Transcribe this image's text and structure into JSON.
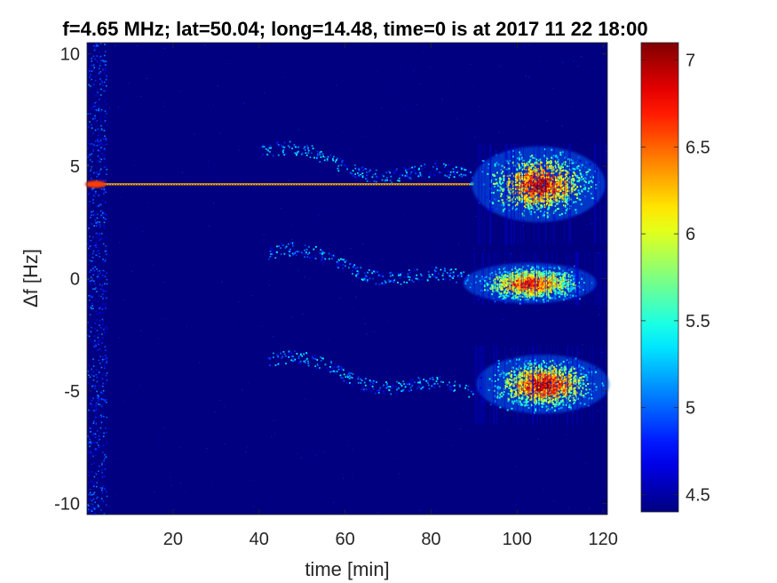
{
  "chart_data": {
    "type": "heatmap",
    "title": "f=4.65 MHz;  lat=50.04; long=14.48, time=0 is at 2017 11 22 18:00",
    "xlabel": "time [min]",
    "ylabel": "Δf [Hz]",
    "xlim": [
      0,
      121
    ],
    "ylim": [
      -10.5,
      10.5
    ],
    "xticks": [
      20,
      40,
      60,
      80,
      100,
      120
    ],
    "yticks": [
      -10,
      -5,
      0,
      5,
      10
    ],
    "colorbar": {
      "colormap": "jet",
      "range": [
        4.4,
        7.1
      ],
      "ticks": [
        4.5,
        5,
        5.5,
        6,
        6.5,
        7
      ]
    },
    "background_value": 4.4,
    "grid": false,
    "features": [
      {
        "kind": "vertical_band",
        "x": [
          0,
          4.5
        ],
        "y": [
          -10.5,
          10.5
        ],
        "value": 4.9
      },
      {
        "kind": "constant_line",
        "x": [
          0,
          90
        ],
        "y": 4.2,
        "value": 6.3
      },
      {
        "kind": "drift_trace",
        "x": [
          40,
          90
        ],
        "y": [
          5.7,
          4.3
        ],
        "value": 4.9
      },
      {
        "kind": "drift_trace",
        "x": [
          42,
          90
        ],
        "y": [
          1.2,
          -0.3
        ],
        "value": 4.9
      },
      {
        "kind": "drift_trace",
        "x": [
          42,
          90
        ],
        "y": [
          -3.6,
          -5.2
        ],
        "value": 4.9
      },
      {
        "kind": "intense_cluster",
        "x": [
          90,
          121
        ],
        "y": [
          1.5,
          6
        ],
        "peak": [
          105,
          4.2
        ],
        "value": 7.0
      },
      {
        "kind": "intense_cluster",
        "x": [
          90,
          121
        ],
        "y": [
          -1.2,
          1.2
        ],
        "peak": [
          103,
          -0.2
        ],
        "value": 6.9
      },
      {
        "kind": "intense_cluster",
        "x": [
          90,
          121
        ],
        "y": [
          -6.5,
          -3
        ],
        "peak": [
          106,
          -4.7
        ],
        "value": 7.0
      }
    ]
  }
}
